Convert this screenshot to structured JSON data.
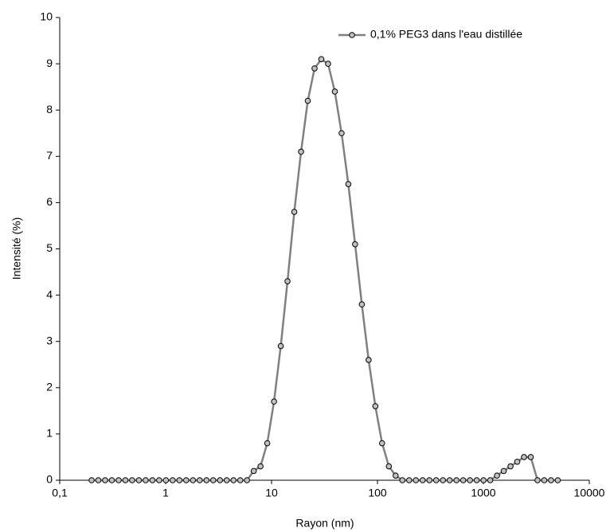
{
  "chart_data": {
    "type": "line",
    "xlabel": "Rayon (nm)",
    "ylabel": "Intensité (%)",
    "xscale": "log",
    "xlim": [
      0.1,
      10000
    ],
    "xticks": [
      {
        "value": 0.1,
        "label": "0,1"
      },
      1,
      10,
      100,
      1000,
      10000
    ],
    "ylim": [
      0,
      10
    ],
    "yticks": [
      0,
      1,
      2,
      3,
      4,
      5,
      6,
      7,
      8,
      9,
      10
    ],
    "grid": false,
    "legend": "upper right",
    "x": [
      0.2,
      0.2316,
      0.2683,
      0.3107,
      0.3599,
      0.4168,
      0.4828,
      0.5591,
      0.6476,
      0.7501,
      0.8687,
      1.006,
      1.165,
      1.35,
      1.563,
      1.811,
      2.097,
      2.429,
      2.813,
      3.258,
      3.774,
      4.371,
      5.062,
      5.863,
      6.791,
      7.865,
      9.109,
      10.55,
      12.22,
      14.15,
      16.39,
      18.99,
      21.99,
      25.47,
      29.5,
      34.17,
      39.57,
      45.83,
      53.08,
      61.48,
      71.21,
      82.47,
      95.52,
      110.6,
      128.1,
      148.4,
      171.9,
      199.1,
      230.6,
      267.1,
      309.3,
      358.3,
      415.0,
      480.6,
      556.7,
      644.7,
      746.7,
      864.9,
      1002,
      1160,
      1344,
      1556,
      1803,
      2088,
      2418,
      2801,
      3244,
      3757,
      4352,
      5040
    ],
    "series": [
      {
        "name": "0,1% PEG3 dans l'eau distillée",
        "color": "#808080",
        "marker_fill": "#c0c0c0",
        "values": [
          0,
          0,
          0,
          0,
          0,
          0,
          0,
          0,
          0,
          0,
          0,
          0,
          0,
          0,
          0,
          0,
          0,
          0,
          0,
          0,
          0,
          0,
          0,
          0,
          0.2,
          0.3,
          0.8,
          1.7,
          2.9,
          4.3,
          5.8,
          7.1,
          8.2,
          8.9,
          9.1,
          9.0,
          8.4,
          7.5,
          6.4,
          5.1,
          3.8,
          2.6,
          1.6,
          0.8,
          0.3,
          0.1,
          0,
          0,
          0,
          0,
          0,
          0,
          0,
          0,
          0,
          0,
          0,
          0,
          0,
          0,
          0.1,
          0.2,
          0.3,
          0.4,
          0.5,
          0.5,
          0,
          0,
          0,
          0
        ]
      }
    ]
  }
}
